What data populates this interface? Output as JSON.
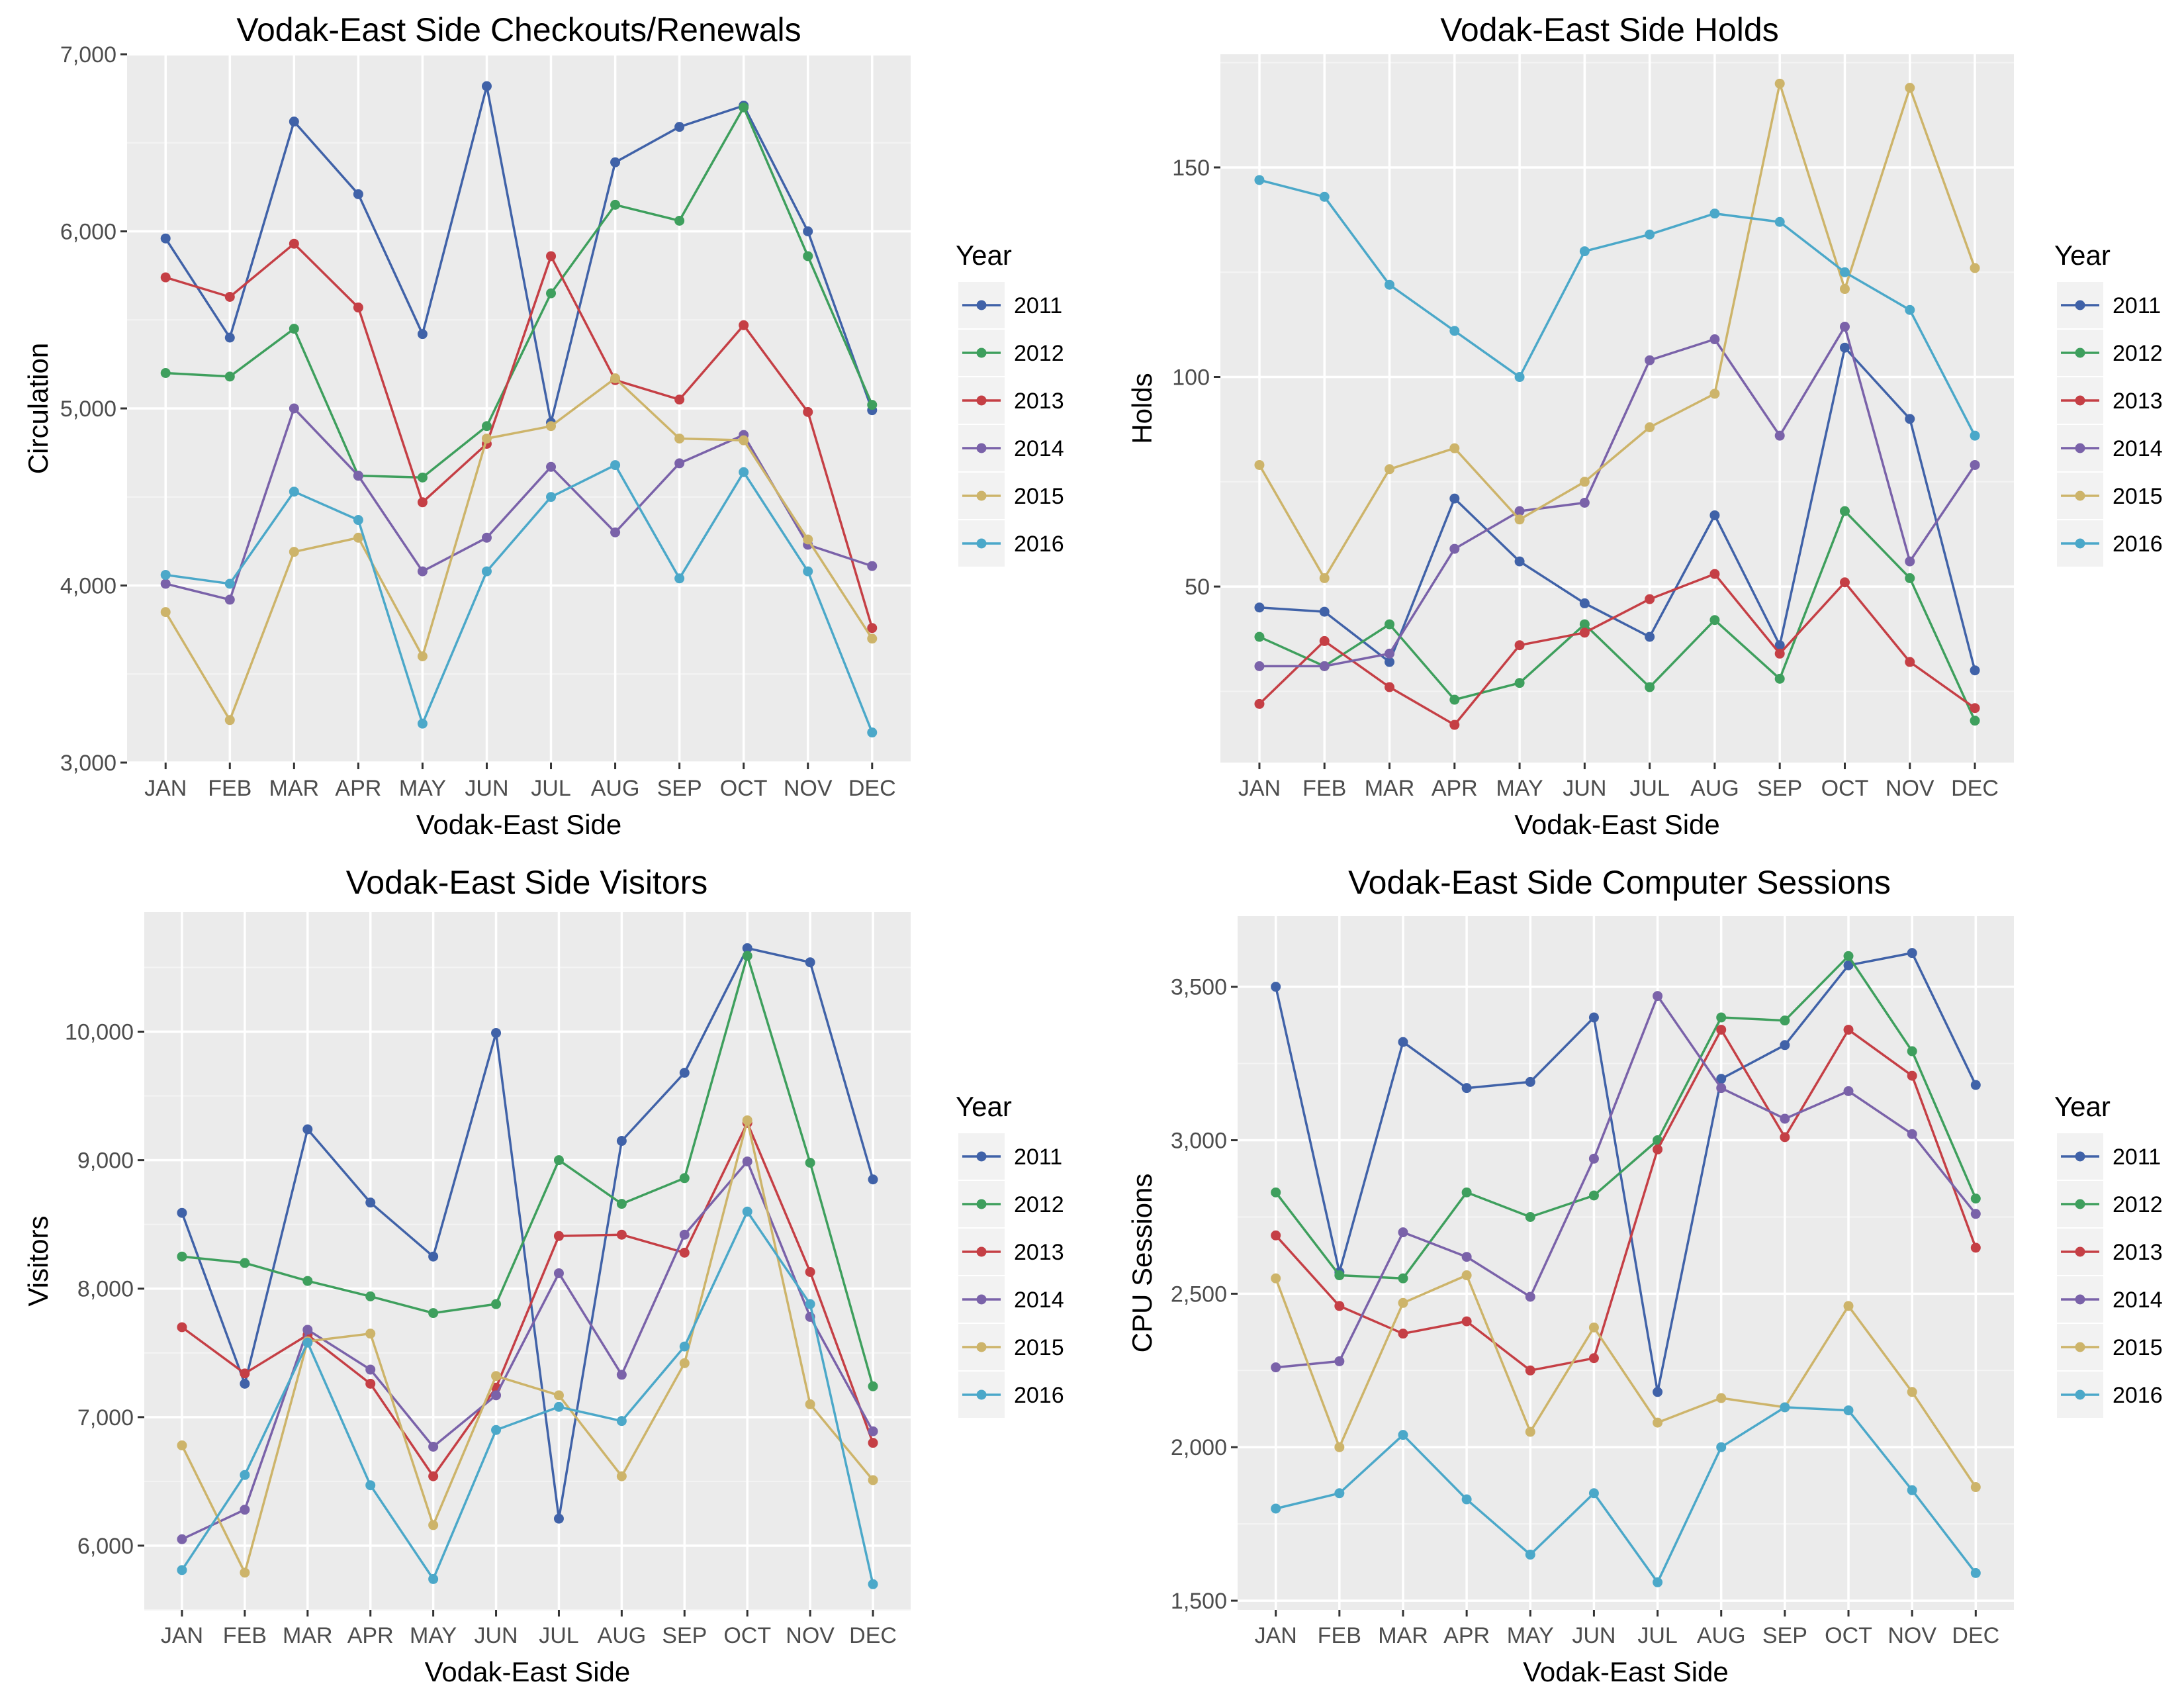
{
  "colors": {
    "panel_bg": "#EBEBEB",
    "grid_major": "#FFFFFF",
    "grid_minor": "#F4F4F4",
    "tick_mark": "#333333",
    "series": [
      "#4062A8",
      "#3E9F5D",
      "#C53F45",
      "#7A62A9",
      "#CDB46A",
      "#4BA8C9"
    ]
  },
  "chart_data": [
    {
      "type": "line",
      "title": "Vodak-East Side Checkouts/Renewals",
      "xlabel": "Vodak-East Side",
      "ylabel": "Circulation",
      "categories": [
        "JAN",
        "FEB",
        "MAR",
        "APR",
        "MAY",
        "JUN",
        "JUL",
        "AUG",
        "SEP",
        "OCT",
        "NOV",
        "DEC"
      ],
      "ylim": [
        3000,
        7000
      ],
      "yticks": [
        3000,
        4000,
        5000,
        6000,
        7000
      ],
      "ytick_labels": [
        "3,000",
        "4,000",
        "5,000",
        "6,000",
        "7,000"
      ],
      "legend_title": "Year",
      "legend_position": "right",
      "grid": true,
      "series": [
        {
          "name": "2011",
          "values": [
            5960,
            5400,
            6620,
            6210,
            5420,
            6820,
            4920,
            6390,
            6590,
            6710,
            6000,
            4990
          ]
        },
        {
          "name": "2012",
          "values": [
            5200,
            5180,
            5450,
            4620,
            4610,
            4900,
            5650,
            6150,
            6060,
            6700,
            5860,
            5020
          ]
        },
        {
          "name": "2013",
          "values": [
            5740,
            5630,
            5930,
            5570,
            4470,
            4800,
            5860,
            5160,
            5050,
            5470,
            4980,
            3760
          ]
        },
        {
          "name": "2014",
          "values": [
            4010,
            3920,
            5000,
            4620,
            4080,
            4270,
            4670,
            4300,
            4690,
            4850,
            4230,
            4110
          ]
        },
        {
          "name": "2015",
          "values": [
            3850,
            3240,
            4190,
            4270,
            3600,
            4830,
            4900,
            5170,
            4830,
            4820,
            4260,
            3700
          ]
        },
        {
          "name": "2016",
          "values": [
            4060,
            4010,
            4530,
            4370,
            3220,
            4080,
            4500,
            4680,
            4040,
            4640,
            4080,
            3170
          ]
        }
      ]
    },
    {
      "type": "line",
      "title": "Vodak-East Side Holds",
      "xlabel": "Vodak-East Side",
      "ylabel": "Holds",
      "categories": [
        "JAN",
        "FEB",
        "MAR",
        "APR",
        "MAY",
        "JUN",
        "JUL",
        "AUG",
        "SEP",
        "OCT",
        "NOV",
        "DEC"
      ],
      "ylim": [
        8,
        177
      ],
      "yticks": [
        50,
        100,
        150
      ],
      "ytick_labels": [
        "50",
        "100",
        "150"
      ],
      "legend_title": "Year",
      "legend_position": "right",
      "grid": true,
      "series": [
        {
          "name": "2011",
          "values": [
            45,
            44,
            32,
            71,
            56,
            46,
            38,
            67,
            36,
            107,
            90,
            30
          ]
        },
        {
          "name": "2012",
          "values": [
            38,
            31,
            41,
            23,
            27,
            41,
            26,
            42,
            28,
            68,
            52,
            18
          ]
        },
        {
          "name": "2013",
          "values": [
            22,
            37,
            26,
            17,
            36,
            39,
            47,
            53,
            34,
            51,
            32,
            21
          ]
        },
        {
          "name": "2014",
          "values": [
            31,
            31,
            34,
            59,
            68,
            70,
            104,
            109,
            86,
            112,
            56,
            79
          ]
        },
        {
          "name": "2015",
          "values": [
            79,
            52,
            78,
            83,
            66,
            75,
            88,
            96,
            170,
            121,
            169,
            126
          ]
        },
        {
          "name": "2016",
          "values": [
            147,
            143,
            122,
            111,
            100,
            130,
            134,
            139,
            137,
            125,
            116,
            86
          ]
        }
      ]
    },
    {
      "type": "line",
      "title": "Vodak-East Side Visitors",
      "xlabel": "Vodak-East Side",
      "ylabel": "Visitors",
      "categories": [
        "JAN",
        "FEB",
        "MAR",
        "APR",
        "MAY",
        "JUN",
        "JUL",
        "AUG",
        "SEP",
        "OCT",
        "NOV",
        "DEC"
      ],
      "ylim": [
        5500,
        10930
      ],
      "yticks": [
        6000,
        7000,
        8000,
        9000,
        10000
      ],
      "ytick_labels": [
        "6,000",
        "7,000",
        "8,000",
        "9,000",
        "10,000"
      ],
      "legend_title": "Year",
      "legend_position": "right",
      "grid": true,
      "series": [
        {
          "name": "2011",
          "values": [
            8590,
            7260,
            9240,
            8670,
            8250,
            9990,
            6210,
            9150,
            9680,
            10650,
            10540,
            8850
          ]
        },
        {
          "name": "2012",
          "values": [
            8250,
            8200,
            8060,
            7940,
            7810,
            7880,
            9000,
            8660,
            8860,
            10590,
            8980,
            7240
          ]
        },
        {
          "name": "2013",
          "values": [
            7700,
            7340,
            7640,
            7260,
            6540,
            7230,
            8410,
            8420,
            8280,
            9290,
            8130,
            6800
          ]
        },
        {
          "name": "2014",
          "values": [
            6050,
            6280,
            7680,
            7370,
            6770,
            7170,
            8120,
            7330,
            8420,
            8990,
            7780,
            6890
          ]
        },
        {
          "name": "2015",
          "values": [
            6780,
            5790,
            7590,
            7650,
            6160,
            7320,
            7170,
            6540,
            7420,
            9310,
            7100,
            6510
          ]
        },
        {
          "name": "2016",
          "values": [
            5810,
            6550,
            7580,
            6470,
            5740,
            6900,
            7080,
            6970,
            7550,
            8600,
            7880,
            5700
          ]
        }
      ]
    },
    {
      "type": "line",
      "title": "Vodak-East Side Computer Sessions",
      "xlabel": "Vodak-East Side",
      "ylabel": "CPU Sessions",
      "categories": [
        "JAN",
        "FEB",
        "MAR",
        "APR",
        "MAY",
        "JUN",
        "JUL",
        "AUG",
        "SEP",
        "OCT",
        "NOV",
        "DEC"
      ],
      "ylim": [
        1470,
        3730
      ],
      "yticks": [
        1500,
        2000,
        2500,
        3000,
        3500
      ],
      "ytick_labels": [
        "1,500",
        "2,000",
        "2,500",
        "3,000",
        "3,500"
      ],
      "legend_title": "Year",
      "legend_position": "right",
      "grid": true,
      "series": [
        {
          "name": "2011",
          "values": [
            3500,
            2570,
            3320,
            3170,
            3190,
            3400,
            2180,
            3200,
            3310,
            3570,
            3610,
            3180
          ]
        },
        {
          "name": "2012",
          "values": [
            2830,
            2560,
            2550,
            2830,
            2750,
            2820,
            3000,
            3400,
            3390,
            3600,
            3290,
            2810
          ]
        },
        {
          "name": "2013",
          "values": [
            2690,
            2460,
            2370,
            2410,
            2250,
            2290,
            2970,
            3360,
            3010,
            3360,
            3210,
            2650
          ]
        },
        {
          "name": "2014",
          "values": [
            2260,
            2280,
            2700,
            2620,
            2490,
            2940,
            3470,
            3170,
            3070,
            3160,
            3020,
            2760
          ]
        },
        {
          "name": "2015",
          "values": [
            2550,
            2000,
            2470,
            2560,
            2050,
            2390,
            2080,
            2160,
            2130,
            2460,
            2180,
            1870
          ]
        },
        {
          "name": "2016",
          "values": [
            1800,
            1850,
            2040,
            1830,
            1650,
            1850,
            1560,
            2000,
            2130,
            2120,
            1860,
            1590
          ]
        }
      ]
    }
  ]
}
